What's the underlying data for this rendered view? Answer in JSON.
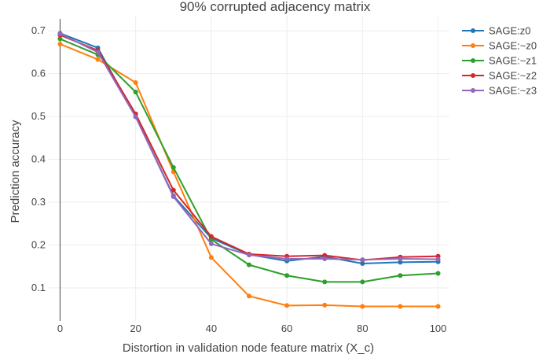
{
  "chart_data": {
    "type": "line",
    "title": "90% corrupted adjacency matrix",
    "xlabel": "Distortion in validation node feature matrix (X_c)",
    "ylabel": "Prediction accuracy",
    "x": [
      0,
      10,
      20,
      30,
      40,
      50,
      60,
      70,
      80,
      90,
      100
    ],
    "xlim": [
      -3,
      103
    ],
    "ylim": [
      0.023,
      0.735
    ],
    "x_ticks": [
      "0",
      "20",
      "40",
      "60",
      "80",
      "100"
    ],
    "y_ticks": [
      "0.1",
      "0.2",
      "0.3",
      "0.4",
      "0.5",
      "0.6",
      "0.7"
    ],
    "grid": true,
    "legend_position": "top-right",
    "series": [
      {
        "name": "SAGE:z0",
        "color": "#1f77b4",
        "values": [
          0.694,
          0.66,
          0.5,
          0.315,
          0.216,
          0.178,
          0.163,
          0.173,
          0.157,
          0.16,
          0.161
        ]
      },
      {
        "name": "SAGE:~z0",
        "color": "#ff7f0e",
        "values": [
          0.669,
          0.633,
          0.579,
          0.371,
          0.171,
          0.081,
          0.059,
          0.06,
          0.057,
          0.057,
          0.057
        ]
      },
      {
        "name": "SAGE:~z1",
        "color": "#2ca02c",
        "values": [
          0.681,
          0.644,
          0.557,
          0.381,
          0.213,
          0.154,
          0.129,
          0.114,
          0.114,
          0.129,
          0.134
        ]
      },
      {
        "name": "SAGE:~z2",
        "color": "#d62728",
        "values": [
          0.69,
          0.654,
          0.506,
          0.328,
          0.22,
          0.179,
          0.174,
          0.176,
          0.165,
          0.172,
          0.174
        ]
      },
      {
        "name": "SAGE:~z3",
        "color": "#9467bd",
        "values": [
          0.693,
          0.65,
          0.499,
          0.313,
          0.203,
          0.177,
          0.168,
          0.168,
          0.166,
          0.168,
          0.167
        ]
      }
    ]
  }
}
